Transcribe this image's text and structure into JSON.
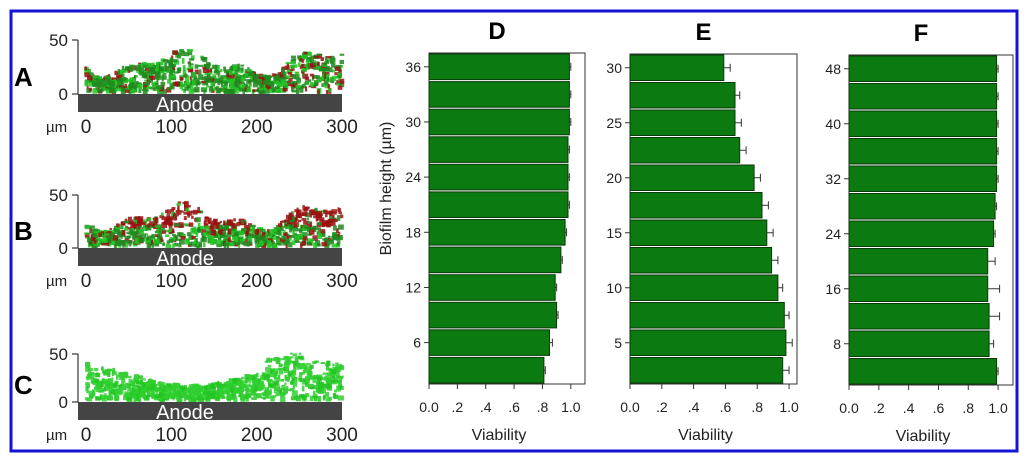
{
  "colors": {
    "frame": "#1414d8",
    "bar": "#0b7a10",
    "live": "#22c422",
    "dead": "#9a1010",
    "anode": "#444444"
  },
  "panels": [
    {
      "letter": "A",
      "y_ticks": [
        "50",
        "0"
      ],
      "substrate": "Anode",
      "unit": "µm",
      "x_ticks": [
        "0",
        "100",
        "200",
        "300"
      ],
      "dead_fraction": 0.12
    },
    {
      "letter": "B",
      "y_ticks": [
        "50",
        "0"
      ],
      "substrate": "Anode",
      "unit": "µm",
      "x_ticks": [
        "0",
        "100",
        "200",
        "300"
      ],
      "dead_fraction": 0.45
    },
    {
      "letter": "C",
      "y_ticks": [
        "50",
        "0"
      ],
      "substrate": "Anode",
      "unit": "µm",
      "x_ticks": [
        "0",
        "100",
        "200",
        "300"
      ],
      "dead_fraction": 0.0
    }
  ],
  "chart_data": [
    {
      "type": "bar",
      "orientation": "horizontal",
      "title": "D",
      "ylabel": "Biofilm height (µm)",
      "xlabel": "Viability",
      "categories": [
        3,
        6,
        9,
        12,
        15,
        18,
        21,
        24,
        27,
        30,
        33,
        36
      ],
      "values": [
        0.81,
        0.85,
        0.9,
        0.89,
        0.93,
        0.96,
        0.98,
        0.98,
        0.98,
        0.99,
        0.99,
        0.99
      ],
      "errors": [
        0.01,
        0.02,
        0.01,
        0.01,
        0.01,
        0.01,
        0.01,
        0.01,
        0.01,
        0.01,
        0.01,
        0.01
      ],
      "y_tick_labels": [
        "6",
        "12",
        "18",
        "24",
        "30",
        "36"
      ],
      "x_tick_labels": [
        "0.0",
        ".2",
        ".4",
        ".6",
        ".8",
        "1.0"
      ],
      "xlim": [
        0,
        1.1
      ],
      "grid": false
    },
    {
      "type": "bar",
      "orientation": "horizontal",
      "title": "E",
      "ylabel": "",
      "xlabel": "Viability",
      "categories": [
        2.5,
        5,
        7.5,
        10,
        12.5,
        15,
        17.5,
        20,
        22.5,
        25,
        27.5,
        30
      ],
      "values": [
        0.96,
        0.98,
        0.97,
        0.93,
        0.89,
        0.86,
        0.83,
        0.78,
        0.69,
        0.66,
        0.66,
        0.59
      ],
      "errors": [
        0.04,
        0.04,
        0.03,
        0.03,
        0.04,
        0.04,
        0.04,
        0.04,
        0.04,
        0.04,
        0.03,
        0.04
      ],
      "y_tick_labels": [
        "5",
        "10",
        "15",
        "20",
        "25",
        "30"
      ],
      "x_tick_labels": [
        "0.0",
        ".2",
        ".4",
        ".6",
        ".8",
        "1.0"
      ],
      "xlim": [
        0,
        1.05
      ],
      "grid": false
    },
    {
      "type": "bar",
      "orientation": "horizontal",
      "title": "F",
      "ylabel": "",
      "xlabel": "Viability",
      "categories": [
        4,
        8,
        12,
        16,
        20,
        24,
        28,
        32,
        36,
        40,
        44,
        48
      ],
      "values": [
        0.99,
        0.94,
        0.94,
        0.93,
        0.93,
        0.97,
        0.98,
        0.99,
        0.99,
        0.99,
        0.99,
        0.99
      ],
      "errors": [
        0.01,
        0.03,
        0.07,
        0.08,
        0.05,
        0.01,
        0.01,
        0.01,
        0.01,
        0.01,
        0.01,
        0.01
      ],
      "y_tick_labels": [
        "8",
        "16",
        "24",
        "32",
        "40",
        "48"
      ],
      "x_tick_labels": [
        "0.0",
        ".2",
        ".4",
        ".6",
        ".8",
        "1.0"
      ],
      "xlim": [
        0,
        1.1
      ],
      "grid": false
    }
  ]
}
